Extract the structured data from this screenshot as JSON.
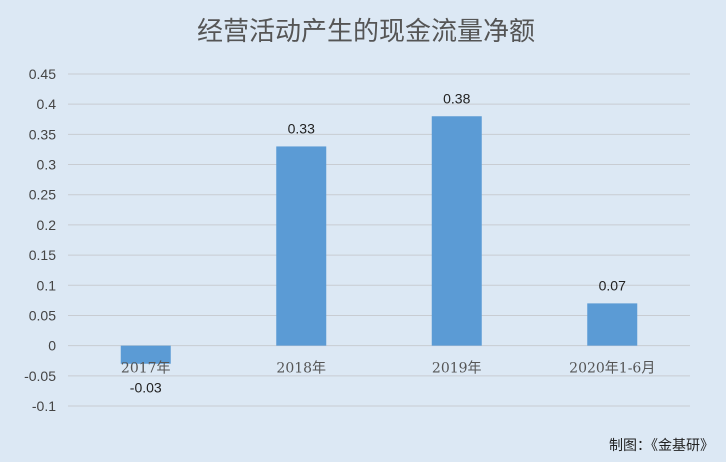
{
  "chart_data": {
    "type": "bar",
    "title": "经营活动产生的现金流量净额",
    "categories": [
      "2017年",
      "2018年",
      "2019年",
      "2020年1-6月"
    ],
    "values": [
      -0.03,
      0.33,
      0.38,
      0.07
    ],
    "data_labels": [
      "-0.03",
      "0.33",
      "0.38",
      "0.07"
    ],
    "y_ticks": [
      "0.45",
      "0.4",
      "0.35",
      "0.3",
      "0.25",
      "0.2",
      "0.15",
      "0.1",
      "0.05",
      "0",
      "-0.05",
      "-0.1"
    ],
    "ylim": [
      -0.1,
      0.45
    ],
    "grid": true,
    "legend": "none",
    "bar_color": "#5b9bd5"
  },
  "credit": "制图：《金基研》"
}
